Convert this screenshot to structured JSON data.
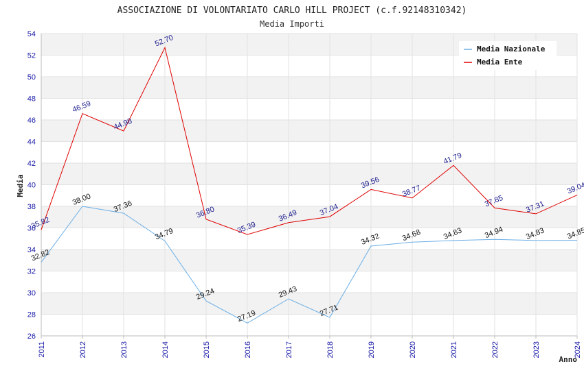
{
  "chart_data": {
    "type": "line",
    "title": "ASSOCIAZIONE DI VOLONTARIATO CARLO HILL PROJECT (c.f.92148310342)",
    "subtitle": "Media Importi",
    "xlabel": "Anno",
    "ylabel": "Media",
    "ylim": [
      26,
      54
    ],
    "yticks": [
      26,
      28,
      30,
      32,
      34,
      36,
      38,
      40,
      42,
      44,
      46,
      48,
      50,
      52,
      54
    ],
    "categories": [
      "2011",
      "2012",
      "2013",
      "2014",
      "2015",
      "2016",
      "2017",
      "2018",
      "2019",
      "2020",
      "2021",
      "2022",
      "2023",
      "2024"
    ],
    "legend_position": "top-right",
    "series": [
      {
        "name": "Media Nazionale",
        "color": "#6aaee6",
        "label_color": "#111111",
        "values": [
          32.82,
          38.0,
          37.36,
          34.79,
          29.24,
          27.19,
          29.43,
          27.71,
          34.32,
          34.68,
          34.83,
          34.94,
          34.83,
          34.85
        ],
        "labels": [
          "32.82",
          "38.00",
          "37.36",
          "34.79",
          "29.24",
          "27.19",
          "29.43",
          "27.71",
          "34.32",
          "34.68",
          "34.83",
          "34.94",
          "34.83",
          "34.85"
        ]
      },
      {
        "name": "Media Ente",
        "color": "#e00000",
        "label_color": "#1a1a8c",
        "values": [
          35.82,
          46.59,
          44.98,
          52.7,
          36.8,
          35.39,
          36.49,
          37.04,
          39.56,
          38.77,
          41.79,
          37.85,
          37.31,
          39.04
        ],
        "labels": [
          "35.82",
          "46.59",
          "44.98",
          "52.70",
          "36.80",
          "35.39",
          "36.49",
          "37.04",
          "39.56",
          "38.77",
          "41.79",
          "37.85",
          "37.31",
          "39.04"
        ]
      }
    ]
  }
}
